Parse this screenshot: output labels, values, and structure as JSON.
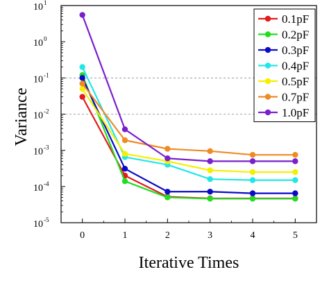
{
  "chart_data": {
    "type": "line",
    "xlabel": "Iterative Times",
    "ylabel": "Variance",
    "x": [
      0,
      1,
      2,
      3,
      4,
      5
    ],
    "xlim": [
      -0.5,
      5.5
    ],
    "ylim": [
      1e-05,
      10
    ],
    "yscale": "log",
    "y_tick_labels": [
      {
        "base": "10",
        "exp": "-5"
      },
      {
        "base": "10",
        "exp": "-4"
      },
      {
        "base": "10",
        "exp": "-3"
      },
      {
        "base": "10",
        "exp": "-2"
      },
      {
        "base": "10",
        "exp": "-1"
      },
      {
        "base": "10",
        "exp": "0"
      },
      {
        "base": "10",
        "exp": "1"
      }
    ],
    "x_tick_labels": [
      "0",
      "1",
      "2",
      "3",
      "4",
      "5"
    ],
    "grid": "dashed reference lines at 10^-1 and 10^-2",
    "legend_position": "top-right",
    "series": [
      {
        "name": "0.1pF",
        "color": "#e41a1c",
        "values": [
          0.03,
          0.0002,
          5.2e-05,
          4.7e-05,
          4.7e-05,
          4.7e-05
        ]
      },
      {
        "name": "0.2pF",
        "color": "#22dd22",
        "values": [
          0.12,
          0.00014,
          5e-05,
          4.6e-05,
          4.6e-05,
          4.6e-05
        ]
      },
      {
        "name": "0.3pF",
        "color": "#0a0ac8",
        "values": [
          0.1,
          0.00031,
          7.2e-05,
          7.2e-05,
          6.5e-05,
          6.5e-05
        ]
      },
      {
        "name": "0.4pF",
        "color": "#22e6e6",
        "values": [
          0.2,
          0.00065,
          0.0004,
          0.00016,
          0.00015,
          0.00015
        ]
      },
      {
        "name": "0.5pF",
        "color": "#f5f000",
        "values": [
          0.05,
          0.0008,
          0.0005,
          0.00028,
          0.00025,
          0.00025
        ]
      },
      {
        "name": "0.7pF",
        "color": "#f08a24",
        "values": [
          0.07,
          0.0019,
          0.0011,
          0.00095,
          0.00075,
          0.00075
        ]
      },
      {
        "name": "1.0pF",
        "color": "#7a1fcc",
        "values": [
          5.5,
          0.0038,
          0.0006,
          0.0005,
          0.0005,
          0.0005
        ]
      }
    ]
  }
}
